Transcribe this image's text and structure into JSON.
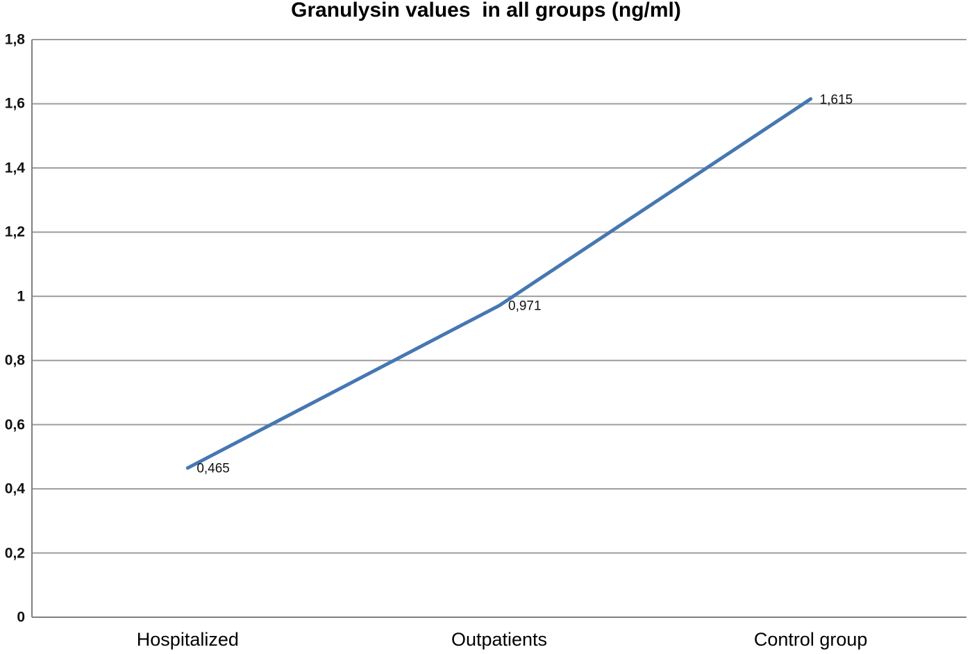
{
  "chart_data": {
    "type": "line",
    "title": "Granulysin values  in all groups (ng/ml)",
    "categories": [
      "Hospitalized",
      "Outpatients",
      "Control group"
    ],
    "values": [
      0.465,
      0.971,
      1.615
    ],
    "point_labels": [
      "0,465",
      "0,971",
      "1,615"
    ],
    "xlabel": "",
    "ylabel": "",
    "ylim": [
      0,
      1.8
    ],
    "ytick_step": 0.2,
    "ytick_labels": [
      "0",
      "0,2",
      "0,4",
      "0,6",
      "0,8",
      "1",
      "1,2",
      "1,4",
      "1,6",
      "1,8"
    ],
    "grid": true,
    "legend": "none",
    "decimal_separator": ",",
    "colors": {
      "line": "#4677B2",
      "gridline": "#9C9C9C",
      "axis": "#7F7F7F",
      "text": "#000000",
      "background": "#FFFFFF"
    }
  }
}
